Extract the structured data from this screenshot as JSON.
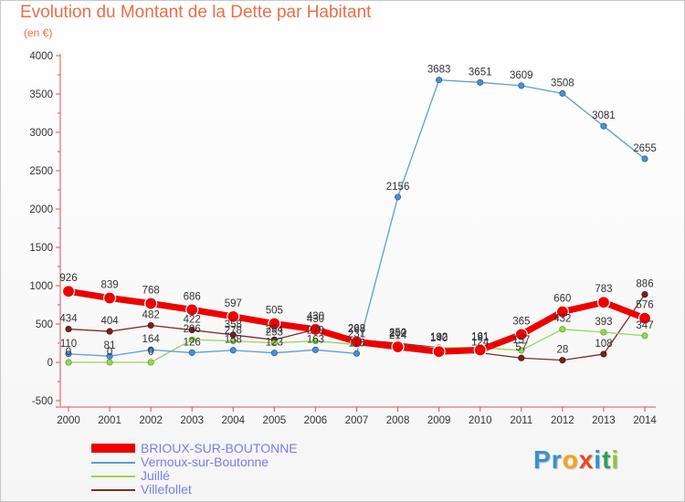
{
  "title": "Evolution du Montant de la Dette par Habitant",
  "subtitle": "(en €)",
  "colors": {
    "title": "#ea6e4a",
    "legend_text": "#7b7bf0",
    "series": [
      "#ee0000",
      "#5b9fd6",
      "#9ad55a",
      "#7a2e2e"
    ]
  },
  "logo": {
    "letters": [
      "P",
      "r",
      "o",
      "x",
      "i",
      "t",
      "i"
    ]
  },
  "chart_data": {
    "type": "line",
    "title": "Evolution du Montant de la Dette par Habitant",
    "ylabel": "(en €)",
    "xlabel": "",
    "x": [
      "2000",
      "2001",
      "2002",
      "2003",
      "2004",
      "2005",
      "2006",
      "2007",
      "2008",
      "2009",
      "2010",
      "2011",
      "2012",
      "2013",
      "2014"
    ],
    "ylim": [
      -500,
      4000
    ],
    "yticks": [
      -500,
      0,
      500,
      1000,
      1500,
      2000,
      2500,
      3000,
      3500,
      4000
    ],
    "grid": false,
    "legend_position": "bottom-left",
    "series": [
      {
        "name": "BRIOUX-SUR-BOUTONNE",
        "values": [
          926,
          839,
          768,
          686,
          597,
          505,
          430,
          268,
          202,
          140,
          161,
          365,
          660,
          783,
          576
        ]
      },
      {
        "name": "Vernoux-sur-Boutonne",
        "values": [
          110,
          81,
          164,
          126,
          158,
          123,
          163,
          115,
          2156,
          3683,
          3651,
          3609,
          3508,
          3081,
          2655
        ]
      },
      {
        "name": "Juillé",
        "values": [
          0,
          0,
          0,
          296,
          278,
          253,
          279,
          231,
          214,
          192,
          191,
          157,
          432,
          393,
          347
        ]
      },
      {
        "name": "Villefollet",
        "values": [
          434,
          404,
          482,
          422,
          358,
          294,
          430,
          298,
          250,
          192,
          124,
          57,
          28,
          108,
          886
        ]
      }
    ]
  }
}
